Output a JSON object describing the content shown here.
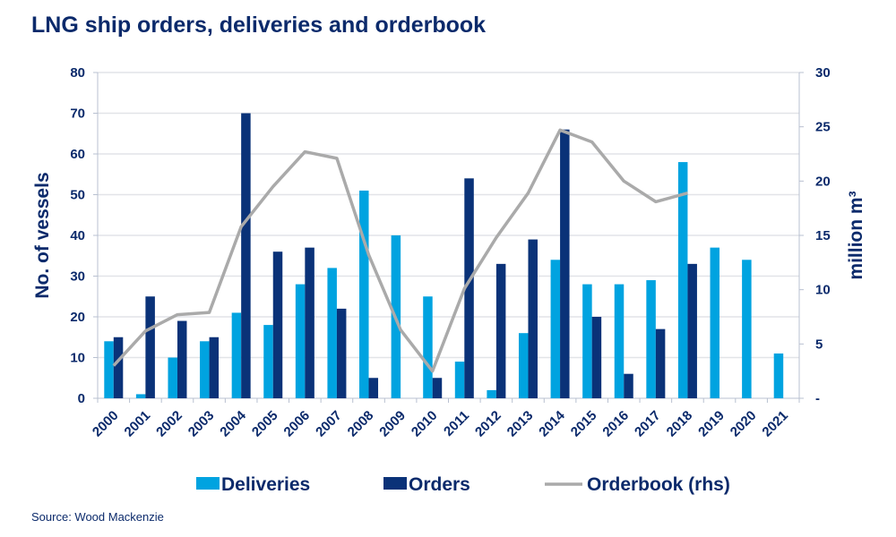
{
  "title": "LNG ship orders, deliveries and orderbook",
  "source": "Source: Wood Mackenzie",
  "chart_data": {
    "type": "bar",
    "categories": [
      "2000",
      "2001",
      "2002",
      "2003",
      "2004",
      "2005",
      "2006",
      "2007",
      "2008",
      "2009",
      "2010",
      "2011",
      "2012",
      "2013",
      "2014",
      "2015",
      "2016",
      "2017",
      "2018",
      "2019",
      "2020",
      "2021"
    ],
    "series": [
      {
        "name": "Deliveries",
        "type": "bar",
        "axis": "left",
        "color": "#00a3e0",
        "values": [
          14,
          1,
          10,
          14,
          21,
          18,
          28,
          32,
          51,
          40,
          25,
          9,
          2,
          16,
          34,
          28,
          28,
          29,
          58,
          37,
          34,
          11
        ]
      },
      {
        "name": "Orders",
        "type": "bar",
        "axis": "left",
        "color": "#0a3278",
        "values": [
          15,
          25,
          19,
          15,
          70,
          36,
          37,
          22,
          5,
          0,
          5,
          54,
          33,
          39,
          66,
          20,
          6,
          17,
          33,
          null,
          null,
          null
        ]
      },
      {
        "name": "Orderbook (rhs)",
        "type": "line",
        "axis": "right",
        "color": "#aaaaaa",
        "values": [
          3.0,
          6.2,
          7.7,
          7.9,
          15.8,
          19.5,
          22.7,
          22.1,
          13.2,
          6.3,
          2.5,
          10.1,
          14.8,
          18.9,
          24.7,
          23.6,
          20.0,
          18.1,
          18.9,
          null,
          null,
          null
        ]
      }
    ],
    "ylabel": "No. of vessels",
    "ylim": [
      0,
      80
    ],
    "yticks": [
      "0",
      "10",
      "20",
      "30",
      "40",
      "50",
      "60",
      "70",
      "80"
    ],
    "y2label": "million m³",
    "y2lim": [
      0,
      30
    ],
    "y2ticks": [
      "-",
      "5",
      "10",
      "15",
      "20",
      "25",
      "30"
    ],
    "grid": true,
    "legend": "bottom"
  }
}
